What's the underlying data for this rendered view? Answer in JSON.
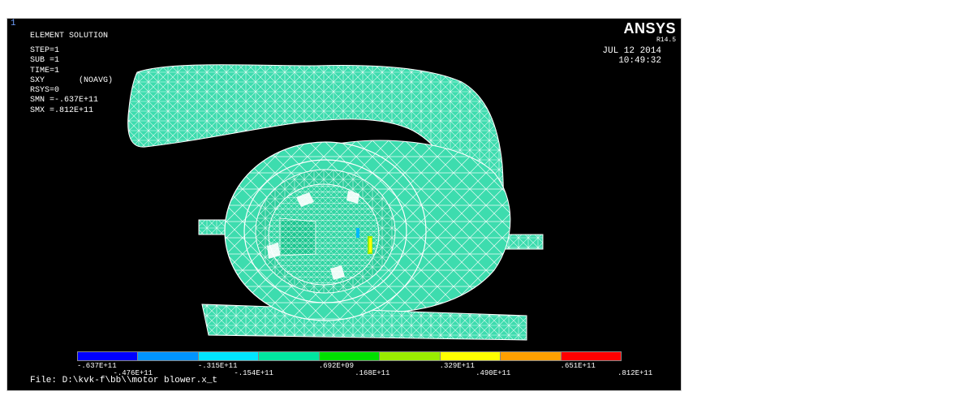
{
  "window": {
    "number": "1"
  },
  "header": {
    "logo": "ANSYS",
    "version": "R14.5",
    "date": "JUL 12 2014",
    "time": "10:49:32",
    "title": "ELEMENT SOLUTION"
  },
  "params": [
    "STEP=1",
    "SUB =1",
    "TIME=1",
    "SXY       (NOAVG)",
    "RSYS=0",
    "SMN =-.637E+11",
    "SMX =.812E+11"
  ],
  "legend": {
    "colors": [
      "#0000ff",
      "#0094ff",
      "#00e5ff",
      "#00e6a0",
      "#00e000",
      "#9aec00",
      "#ffff00",
      "#ffa000",
      "#ff0000"
    ],
    "labels_top": [
      "-.637E+11",
      "-.315E+11",
      ".692E+09",
      ".329E+11",
      ".651E+11"
    ],
    "labels_bottom": [
      "-.476E+11",
      "-.154E+11",
      ".168E+11",
      ".490E+11",
      ".812E+11"
    ]
  },
  "model": {
    "fill": "#3ddcae",
    "mesh": "#ffffff"
  },
  "footer": {
    "file": "File: D:\\kvk-f\\bb\\\\motor blower.x_t"
  }
}
